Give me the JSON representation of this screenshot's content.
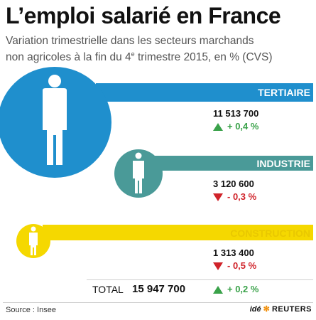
{
  "title": "L’emploi salarié en France",
  "subtitle": {
    "line1": "Variation trimestrielle dans les secteurs marchands",
    "line2_pre": "non agricoles à la fin du 4",
    "line2_sup": "e",
    "line2_post": " trimestre 2015, en % (CVS)"
  },
  "chart_data": {
    "type": "table",
    "title": "L’emploi salarié en France",
    "subtitle": "Variation trimestrielle dans les secteurs marchands non agricoles à la fin du 4e trimestre 2015, en % (CVS)",
    "columns": [
      "sector",
      "employees",
      "quarterly_change_pct"
    ],
    "rows": [
      {
        "sector": "TERTIAIRE",
        "employees": 11513700,
        "employees_label": "11 513 700",
        "change_pct": 0.4,
        "change_label": "+ 0,4 %",
        "direction": "up"
      },
      {
        "sector": "INDUSTRIE",
        "employees": 3120600,
        "employees_label": "3 120 600",
        "change_pct": -0.3,
        "change_label": "- 0,3 %",
        "direction": "down"
      },
      {
        "sector": "CONSTRUCTION",
        "employees": 1313400,
        "employees_label": "1 313 400",
        "change_pct": -0.5,
        "change_label": "- 0,5 %",
        "direction": "down"
      }
    ],
    "total": {
      "label": "TOTAL",
      "employees": 15947700,
      "employees_label": "15 947 700",
      "change_pct": 0.2,
      "change_label": "+ 0,2 %",
      "direction": "up"
    }
  },
  "colors": {
    "tertiaire": "#1f8fcd",
    "industrie": "#4a9a98",
    "construction": "#f5d800",
    "construction_label": "#e9c800",
    "up": "#3aa24a",
    "down": "#d0232a"
  },
  "icons": {
    "person": "person-silhouette-icon",
    "up": "triangle-up-icon",
    "down": "triangle-down-icon"
  },
  "footer": {
    "source": "Source : Insee",
    "logo_ide": "idé",
    "logo_reuters": "REUTERS"
  }
}
